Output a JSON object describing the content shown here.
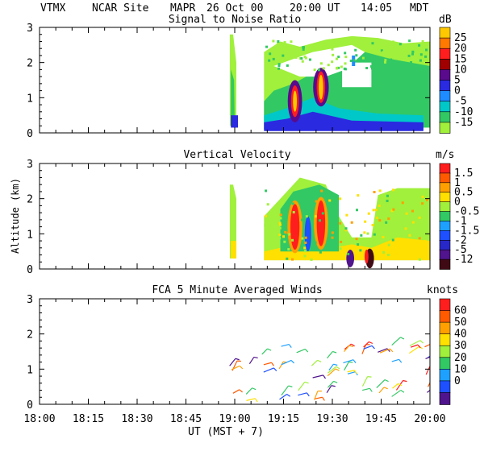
{
  "header": {
    "station": "VTMX",
    "site": "NCAR Site",
    "instrument": "MAPR",
    "date": "26 Oct 00",
    "ut_time": "20:00 UT",
    "local_time": "14:05",
    "zone": "MDT"
  },
  "y_axis_label": "Altitude (km)",
  "x_axis_label": "UT  (MST + 7)",
  "x_ticks": [
    "18:00",
    "18:15",
    "18:30",
    "18:45",
    "19:00",
    "19:15",
    "19:30",
    "19:45",
    "20:00"
  ],
  "chart_data": [
    {
      "type": "heatmap",
      "title": "Signal to Noise Ratio",
      "ylabel": "Altitude (km)",
      "xlabel": "UT (MST + 7)",
      "xlim": [
        "18:00",
        "20:00"
      ],
      "ylim": [
        0,
        3
      ],
      "yticks": [
        "0",
        "1",
        "2",
        "3"
      ],
      "colorbar_unit": "dB",
      "colorbar_labels": [
        "25",
        "20",
        "15",
        "10",
        "5",
        "0",
        "-5",
        "-10",
        "-15"
      ],
      "colors": [
        "#ffc800",
        "#ff7800",
        "#ff1e1e",
        "#a00000",
        "#5a0a8c",
        "#2a2ae0",
        "#1e8cff",
        "#00c8c8",
        "#32c864",
        "#a0f03c"
      ],
      "features": [
        {
          "label": "data start",
          "time": "18:58",
          "top_km": 2.8
        },
        {
          "label": "strong echo column",
          "time": "19:19",
          "alt_km": [
            0.6,
            1.4
          ],
          "snr_db": 20
        },
        {
          "label": "strong echo column",
          "time": "19:26",
          "alt_km": [
            0.9,
            1.8
          ],
          "snr_db": 20
        },
        {
          "label": "data end",
          "time": "20:00"
        }
      ]
    },
    {
      "type": "heatmap",
      "title": "Vertical Velocity",
      "ylabel": "Altitude (km)",
      "xlabel": "UT (MST + 7)",
      "xlim": [
        "18:00",
        "20:00"
      ],
      "ylim": [
        0,
        3
      ],
      "yticks": [
        "0",
        "1",
        "2",
        "3"
      ],
      "colorbar_unit": "m/s",
      "colorbar_labels": [
        "1.5",
        "1",
        "0.5",
        "0",
        "-0.5",
        "-1",
        "-1.5",
        "-2",
        "-5",
        "-12"
      ],
      "colors": [
        "#ff1e1e",
        "#ff5a00",
        "#ffa000",
        "#ffe000",
        "#a0f03c",
        "#32c864",
        "#1ea0ff",
        "#1e50ff",
        "#2828c8",
        "#50148c",
        "#400a14"
      ],
      "features": [
        {
          "label": "updraft",
          "time": "19:19",
          "alt_km": [
            0.5,
            1.9
          ],
          "w_ms": 1.5
        },
        {
          "label": "updraft",
          "time": "19:26",
          "alt_km": [
            0.6,
            2.0
          ],
          "w_ms": 1.5
        },
        {
          "label": "downdraft",
          "time": "19:44",
          "alt_km": [
            0.1,
            0.5
          ],
          "w_ms": -12
        }
      ]
    },
    {
      "type": "scatter",
      "title": "FCA 5 Minute Averaged Winds",
      "ylabel": "Altitude (km)",
      "xlabel": "UT (MST + 7)",
      "xlim": [
        "18:00",
        "20:00"
      ],
      "ylim": [
        0,
        3
      ],
      "yticks": [
        "0",
        "1",
        "2",
        "3"
      ],
      "colorbar_unit": "knots",
      "colorbar_labels": [
        "60",
        "50",
        "40",
        "30",
        "20",
        "10",
        "0"
      ],
      "colors": [
        "#ff1e1e",
        "#ff5a00",
        "#ffa000",
        "#ffe000",
        "#a0f03c",
        "#32c864",
        "#1ea0ff",
        "#1e50ff",
        "#50148c"
      ],
      "note": "Wind barbs plotted at 5-minute intervals from 19:00 to 20:00 UT below about 1.8 km"
    }
  ]
}
